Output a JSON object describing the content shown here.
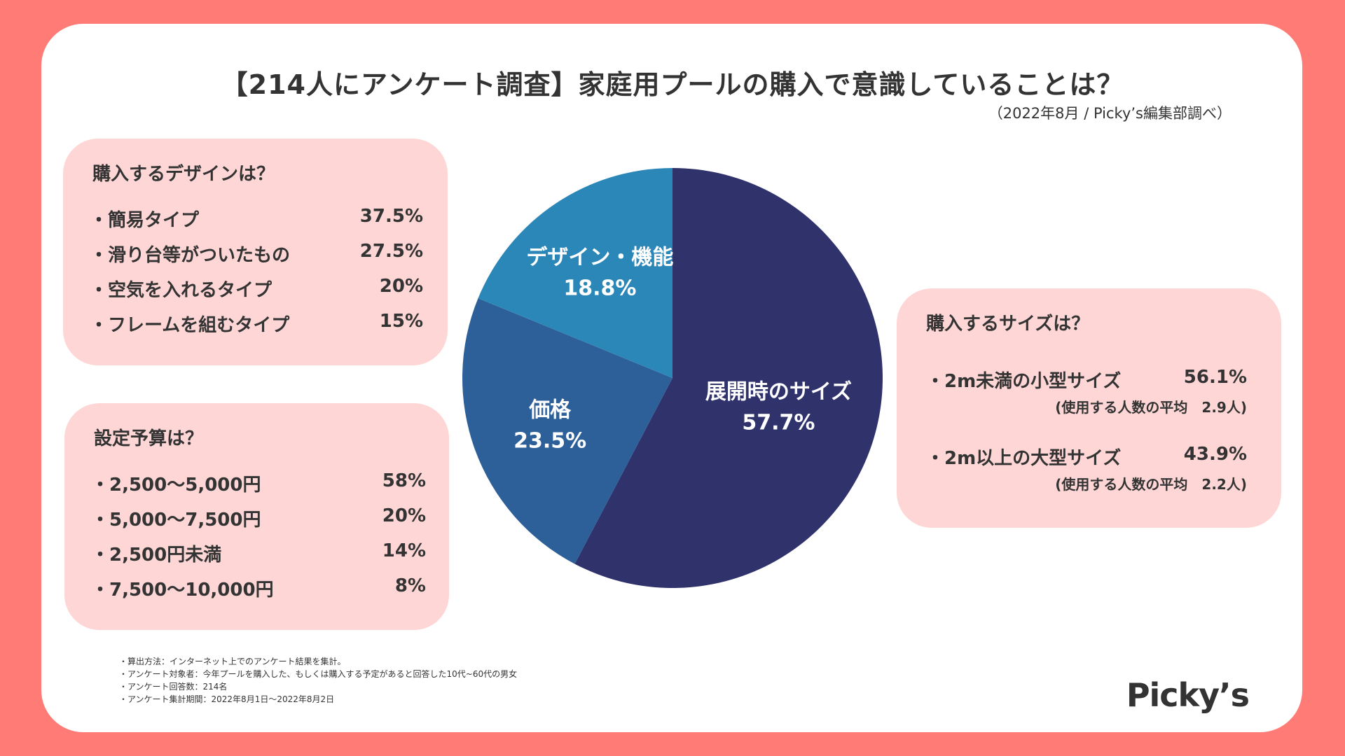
{
  "title": "【214人にアンケート調査】家庭用プールの購入で意識していることは？",
  "subtitle": "（2022年8月 / Picky’s編集部調べ）",
  "design_box": {
    "heading": "購入するデザインは？",
    "items": [
      {
        "label": "・簡易タイプ",
        "value": "37.5%"
      },
      {
        "label": "・滑り台等がついたもの",
        "value": "27.5%"
      },
      {
        "label": "・空気を入れるタイプ",
        "value": "20%"
      },
      {
        "label": "・フレームを組むタイプ",
        "value": "15%"
      }
    ]
  },
  "budget_box": {
    "heading": "設定予算は？",
    "items": [
      {
        "label": "・2,500〜5,000円",
        "value": "58%"
      },
      {
        "label": "・5,000〜7,500円",
        "value": "20%"
      },
      {
        "label": "・2,500円未満",
        "value": "14%"
      },
      {
        "label": "・7,500〜10,000円",
        "value": "8%"
      }
    ]
  },
  "size_box": {
    "heading": "購入するサイズは？",
    "items": [
      {
        "label": "・2m未満の小型サイズ",
        "value": "56.1%",
        "note": "(使用する人数の平均　2.9人)"
      },
      {
        "label": "・2m以上の大型サイズ",
        "value": "43.9%",
        "note": "(使用する人数の平均　2.2人)"
      }
    ]
  },
  "chart_data": {
    "type": "pie",
    "title": "家庭用プールの購入で意識していること",
    "slices": [
      {
        "label": "展開時のサイズ",
        "value": 57.7,
        "value_label": "57.7%",
        "color": "#2f326b"
      },
      {
        "label": "価格",
        "value": 23.5,
        "value_label": "23.5%",
        "color": "#2d5f99"
      },
      {
        "label": "デザイン・機能",
        "value": 18.8,
        "value_label": "18.8%",
        "color": "#2b87b8"
      }
    ]
  },
  "footnotes": [
    "・算出方法：インターネット上でのアンケート結果を集計。",
    "・アンケート対象者：今年プールを購入した、もしくは購入する予定があると回答した10代~60代の男女",
    "・アンケート回答数：214名",
    "・アンケート集計期間：2022年8月1日〜2022年8月2日"
  ],
  "logo": "Picky’s",
  "colors": {
    "background": "#ff7b75",
    "box": "#ffd6d6"
  }
}
